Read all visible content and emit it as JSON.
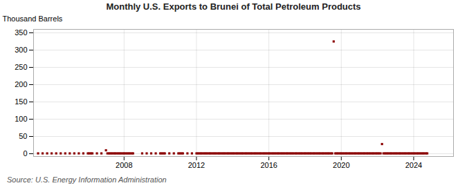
{
  "chart_data": {
    "type": "scatter",
    "title": "Monthly U.S. Exports to Brunei of Total Petroleum Products",
    "y_label": "Thousand Barrels",
    "annotations": [
      "Source: U.S. Energy Information Administration"
    ],
    "color": "#8b0000",
    "marker": "square",
    "grid": true,
    "xlim": [
      2003.0,
      2026.2
    ],
    "xticks": [
      2008,
      2012,
      2016,
      2020,
      2024
    ],
    "ylim": [
      -8,
      360
    ],
    "yticks": [
      0,
      50,
      100,
      150,
      200,
      250,
      300,
      350
    ],
    "x": [
      2003.25,
      2003.5,
      2003.75,
      2004.0,
      2004.25,
      2004.5,
      2004.75,
      2005.0,
      2005.25,
      2005.5,
      2005.75,
      2006.0,
      2006.08,
      2006.17,
      2006.25,
      2006.5,
      2006.75,
      2007.0,
      2007.08,
      2007.17,
      2007.25,
      2007.33,
      2007.42,
      2007.5,
      2007.58,
      2007.67,
      2007.75,
      2007.83,
      2007.92,
      2008.0,
      2008.08,
      2008.17,
      2008.25,
      2008.33,
      2008.42,
      2008.5,
      2009.0,
      2009.25,
      2009.5,
      2009.75,
      2010.0,
      2010.08,
      2010.17,
      2010.25,
      2010.5,
      2010.75,
      2011.0,
      2011.08,
      2011.17,
      2011.25,
      2011.5,
      2011.75,
      2012.0,
      2012.08,
      2012.17,
      2012.25,
      2012.33,
      2012.42,
      2012.5,
      2012.58,
      2012.67,
      2012.75,
      2012.83,
      2012.92,
      2013.0,
      2013.08,
      2013.17,
      2013.25,
      2013.33,
      2013.42,
      2013.5,
      2013.58,
      2013.67,
      2013.75,
      2013.83,
      2013.92,
      2014.0,
      2014.08,
      2014.17,
      2014.25,
      2014.33,
      2014.42,
      2014.5,
      2014.58,
      2014.67,
      2014.75,
      2014.83,
      2014.92,
      2015.0,
      2015.08,
      2015.17,
      2015.25,
      2015.33,
      2015.42,
      2015.5,
      2015.58,
      2015.67,
      2015.75,
      2015.83,
      2015.92,
      2016.0,
      2016.08,
      2016.17,
      2016.25,
      2016.33,
      2016.42,
      2016.5,
      2016.58,
      2016.67,
      2016.75,
      2016.83,
      2016.92,
      2017.0,
      2017.08,
      2017.17,
      2017.25,
      2017.33,
      2017.42,
      2017.5,
      2017.58,
      2017.67,
      2017.75,
      2017.83,
      2017.92,
      2018.0,
      2018.08,
      2018.17,
      2018.25,
      2018.33,
      2018.42,
      2018.5,
      2018.58,
      2018.67,
      2018.75,
      2018.83,
      2018.92,
      2019.0,
      2019.08,
      2019.17,
      2019.25,
      2019.33,
      2019.42,
      2019.5,
      2019.58,
      2019.67,
      2019.75,
      2019.83,
      2019.92,
      2020.0,
      2020.08,
      2020.17,
      2020.25,
      2020.33,
      2020.42,
      2020.5,
      2020.58,
      2020.67,
      2020.75,
      2020.83,
      2020.92,
      2021.0,
      2021.08,
      2021.17,
      2021.25,
      2021.33,
      2021.42,
      2021.5,
      2021.58,
      2021.67,
      2021.75,
      2021.83,
      2021.92,
      2022.0,
      2022.08,
      2022.17,
      2022.25,
      2022.33,
      2022.42,
      2022.5,
      2022.58,
      2022.67,
      2022.75,
      2022.83,
      2022.92,
      2023.0,
      2023.08,
      2023.17,
      2023.25,
      2023.33,
      2023.42,
      2023.5,
      2023.58,
      2023.67,
      2023.75,
      2023.83,
      2023.92,
      2024.0,
      2024.08,
      2024.17,
      2024.25,
      2024.33,
      2024.42,
      2024.5,
      2024.58,
      2024.67,
      2024.75
    ],
    "values": [
      1,
      1,
      1,
      1,
      1,
      1,
      1,
      1,
      1,
      1,
      1,
      1,
      1,
      1,
      1,
      1,
      1,
      10,
      1,
      1,
      1,
      1,
      1,
      1,
      1,
      1,
      1,
      1,
      1,
      1,
      1,
      1,
      1,
      1,
      1,
      1,
      1,
      1,
      1,
      1,
      1,
      1,
      1,
      1,
      1,
      1,
      1,
      1,
      1,
      1,
      1,
      1,
      1,
      1,
      1,
      1,
      1,
      1,
      1,
      1,
      1,
      1,
      1,
      1,
      1,
      1,
      1,
      1,
      1,
      1,
      1,
      1,
      1,
      1,
      1,
      1,
      1,
      1,
      1,
      1,
      1,
      1,
      1,
      1,
      1,
      1,
      1,
      1,
      1,
      1,
      1,
      1,
      1,
      1,
      1,
      1,
      1,
      1,
      1,
      1,
      1,
      1,
      1,
      1,
      1,
      1,
      1,
      1,
      1,
      1,
      1,
      1,
      1,
      1,
      1,
      1,
      1,
      1,
      1,
      1,
      1,
      1,
      1,
      1,
      1,
      1,
      1,
      1,
      1,
      1,
      1,
      1,
      1,
      1,
      1,
      1,
      1,
      1,
      1,
      1,
      1,
      1,
      1,
      325,
      1,
      1,
      1,
      1,
      1,
      1,
      1,
      1,
      1,
      1,
      1,
      1,
      1,
      1,
      1,
      1,
      1,
      1,
      1,
      1,
      1,
      1,
      1,
      1,
      1,
      1,
      1,
      1,
      1,
      1,
      1,
      28,
      1,
      1,
      1,
      1,
      1,
      1,
      1,
      1,
      1,
      1,
      1,
      1,
      1,
      1,
      1,
      1,
      1,
      1,
      1,
      1,
      1,
      1,
      1,
      1,
      1,
      1,
      1,
      1,
      1,
      1
    ]
  }
}
